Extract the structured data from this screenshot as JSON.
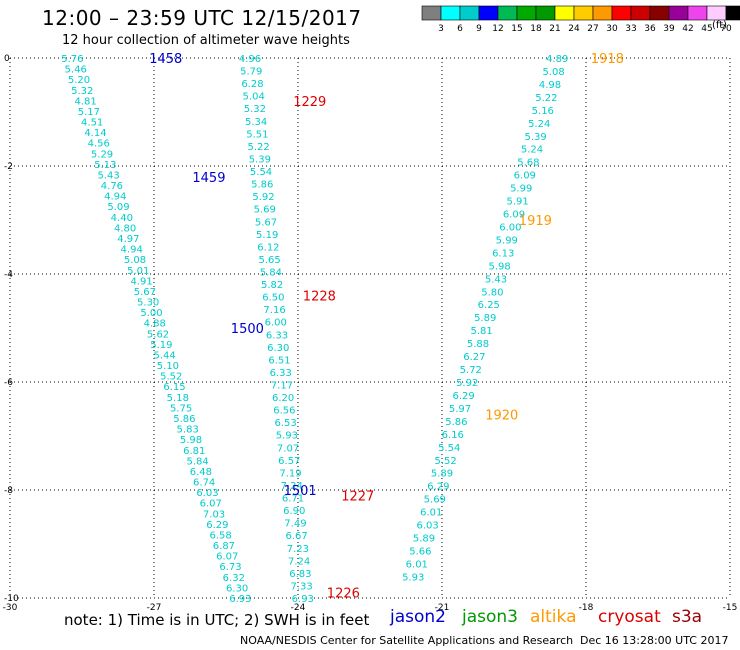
{
  "header": {
    "title": "12:00 – 23:59 UTC 12/15/2017",
    "subtitle": "12 hour collection of altimeter wave heights"
  },
  "colorbar": {
    "unit": "(ft)",
    "ticks": [
      "3",
      "6",
      "9",
      "12",
      "15",
      "18",
      "21",
      "24",
      "27",
      "30",
      "33",
      "36",
      "39",
      "42",
      "45",
      "70"
    ],
    "colors": [
      "#7f7f7f",
      "#00ffff",
      "#00cccc",
      "#0000ff",
      "#00bb55",
      "#00aa00",
      "#009900",
      "#ffff00",
      "#ffcc00",
      "#ff9900",
      "#ff0000",
      "#cc0000",
      "#880000",
      "#990099",
      "#ee44ee",
      "#ffccff",
      "#000000"
    ]
  },
  "footer": {
    "note": "note:  1) Time is in UTC;  2) SWH is in feet",
    "legend": [
      {
        "label": "jason2",
        "color": "#0000cc"
      },
      {
        "label": "jason3",
        "color": "#009900"
      },
      {
        "label": "altika",
        "color": "#ff9900"
      },
      {
        "label": "cryosat",
        "color": "#dd0000"
      },
      {
        "label": "s3a",
        "color": "#990000"
      }
    ],
    "credit": "NOAA/NESDIS Center for Satellite Applications and Research",
    "timestamp": "Dec 16 13:28:00 UTC 2017"
  },
  "chart_data": {
    "type": "scatter",
    "title": "12:00 – 23:59 UTC 12/15/2017",
    "subtitle": "12 hour collection of altimeter wave heights",
    "xlabel": "",
    "ylabel": "",
    "xlim": [
      -30,
      -15
    ],
    "ylim": [
      -10,
      0
    ],
    "xticks": [
      -30,
      -27,
      -24,
      -21,
      -18,
      -15
    ],
    "yticks": [
      0,
      -2,
      -4,
      -6,
      -8,
      -10
    ],
    "grid": true,
    "text_color": "#00cccc",
    "tracks": [
      {
        "satellite": "jason2",
        "lon_start": -28.7,
        "lat_start": 0,
        "lon_end": -25.2,
        "lat_end": -10,
        "values": [
          "5.76",
          "5.46",
          "5.20",
          "5.32",
          "4.81",
          "5.17",
          "4.51",
          "4.14",
          "4.56",
          "5.29",
          "5.13",
          "5.43",
          "4.76",
          "4.94",
          "5.09",
          "4.40",
          "4.80",
          "4.97",
          "4.94",
          "5.08",
          "5.01",
          "4.91",
          "5.67",
          "5.30",
          "5.00",
          "4.88",
          "5.62",
          "5.19",
          "5.44",
          "5.10",
          "5.52",
          "6.15",
          "5.18",
          "5.75",
          "5.86",
          "5.83",
          "5.98",
          "6.81",
          "5.84",
          "6.48",
          "6.74",
          "6.03",
          "6.07",
          "7.03",
          "6.29",
          "6.58",
          "6.87",
          "6.07",
          "6.73",
          "6.32",
          "6.30",
          "6.93"
        ]
      },
      {
        "satellite": "cryosat",
        "lon_start": -25.0,
        "lat_start": 0,
        "lon_end": -23.9,
        "lat_end": -10,
        "values": [
          "4.96",
          "5.79",
          "6.28",
          "5.04",
          "5.32",
          "5.34",
          "5.51",
          "5.22",
          "5.39",
          "5.54",
          "5.86",
          "5.92",
          "5.69",
          "5.67",
          "5.19",
          "6.12",
          "5.65",
          "5.84",
          "5.82",
          "6.50",
          "7.16",
          "6.00",
          "6.33",
          "6.30",
          "6.51",
          "6.33",
          "7.17",
          "6.20",
          "6.56",
          "6.53",
          "5.93",
          "7.07",
          "6.57",
          "7.19",
          "7.24",
          "6.71",
          "6.90",
          "7.49",
          "6.67",
          "7.23",
          "7.24",
          "6.83",
          "7.33",
          "6.93"
        ]
      },
      {
        "satellite": "altika",
        "lon_start": -18.6,
        "lat_start": 0,
        "lon_end": -21.6,
        "lat_end": -9.6,
        "values": [
          "4.89",
          "5.08",
          "4.98",
          "5.22",
          "5.16",
          "5.24",
          "5.39",
          "5.24",
          "5.68",
          "6.09",
          "5.99",
          "5.91",
          "6.09",
          "6.00",
          "5.99",
          "6.13",
          "5.98",
          "5.43",
          "5.80",
          "6.25",
          "5.89",
          "5.81",
          "5.88",
          "6.27",
          "5.72",
          "5.92",
          "6.29",
          "5.97",
          "5.86",
          "6.16",
          "5.54",
          "5.52",
          "5.89",
          "6.29",
          "5.69",
          "6.01",
          "6.03",
          "5.89",
          "5.66",
          "6.01",
          "5.93"
        ]
      }
    ],
    "time_labels": [
      {
        "text": "1458",
        "satellite": "jason2",
        "lon": -27.1,
        "lat": 0.0
      },
      {
        "text": "1459",
        "satellite": "jason2",
        "lon": -26.2,
        "lat": -2.2
      },
      {
        "text": "1500",
        "satellite": "jason2",
        "lon": -25.4,
        "lat": -5.0
      },
      {
        "text": "1501",
        "satellite": "jason2",
        "lon": -24.3,
        "lat": -8.0
      },
      {
        "text": "1229",
        "satellite": "cryosat",
        "lon": -24.1,
        "lat": -0.8
      },
      {
        "text": "1228",
        "satellite": "cryosat",
        "lon": -23.9,
        "lat": -4.4
      },
      {
        "text": "1227",
        "satellite": "cryosat",
        "lon": -23.1,
        "lat": -8.1
      },
      {
        "text": "1226",
        "satellite": "cryosat",
        "lon": -23.4,
        "lat": -9.9
      },
      {
        "text": "1918",
        "satellite": "altika",
        "lon": -17.9,
        "lat": 0.0
      },
      {
        "text": "1919",
        "satellite": "altika",
        "lon": -19.4,
        "lat": -3.0
      },
      {
        "text": "1920",
        "satellite": "altika",
        "lon": -20.1,
        "lat": -6.6
      }
    ]
  }
}
